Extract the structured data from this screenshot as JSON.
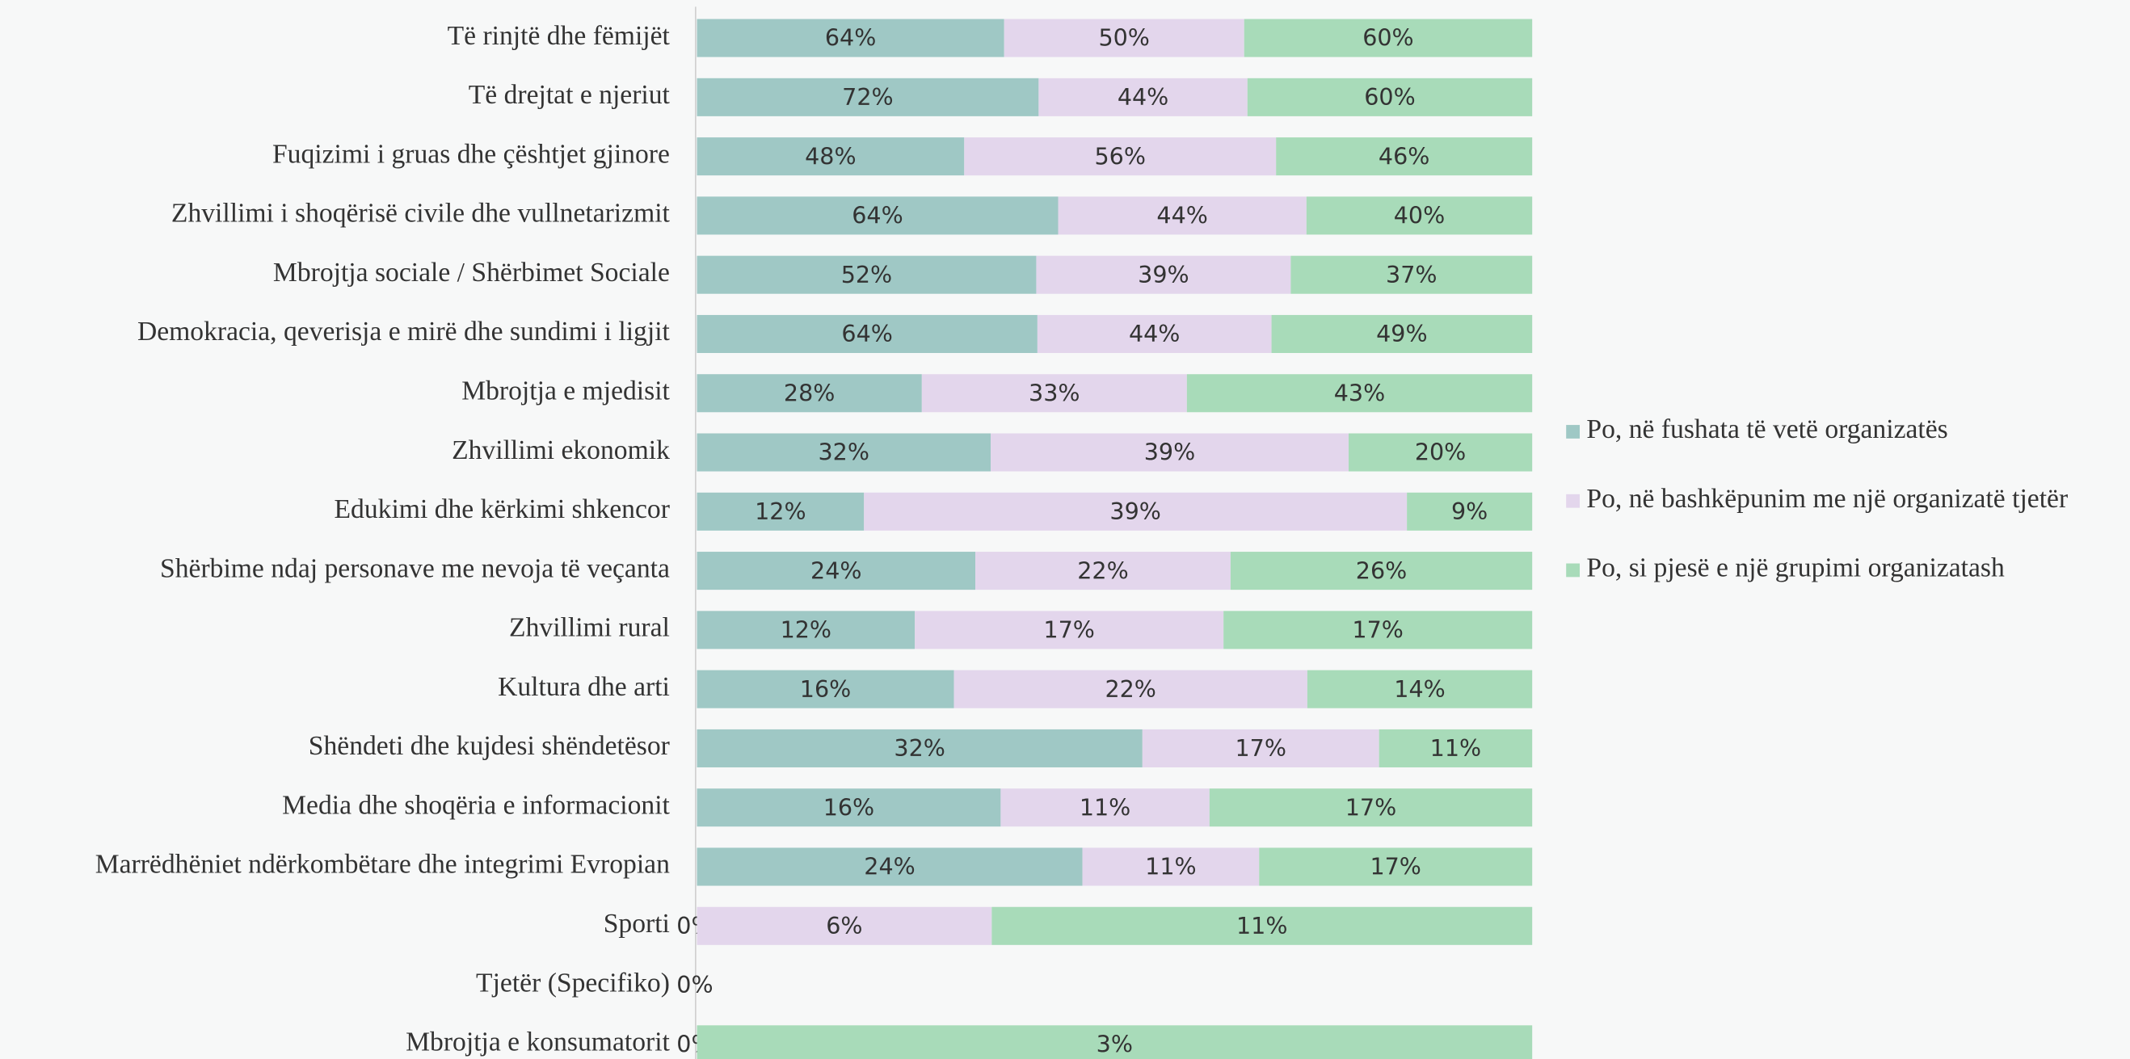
{
  "chart_data": {
    "type": "bar",
    "orientation": "horizontal",
    "stack": "percent",
    "categories": [
      "Të rinjtë dhe fëmijët",
      "Të drejtat e njeriut",
      "Fuqizimi i gruas dhe çështjet gjinore",
      "Zhvillimi i shoqërisë civile dhe vullnetarizmit",
      "Mbrojtja sociale / Shërbimet Sociale",
      "Demokracia, qeverisja e mirë dhe sundimi i ligjit",
      "Mbrojtja e mjedisit",
      "Zhvillimi ekonomik",
      "Edukimi dhe kërkimi shkencor",
      "Shërbime ndaj personave me nevoja të veçanta",
      "Zhvillimi rural",
      "Kultura dhe arti",
      "Shëndeti dhe kujdesi shëndetësor",
      "Media dhe shoqëria e informacionit",
      "Marrëdhëniet ndërkombëtare dhe integrimi Evropian",
      "Sporti",
      "Tjetër (Specifiko)",
      "Mbrojtja e konsumatorit"
    ],
    "series": [
      {
        "name": "Po, në fushata të vetë organizatës",
        "color": "#9fc8c5",
        "values": [
          64,
          72,
          48,
          64,
          52,
          64,
          28,
          32,
          12,
          24,
          12,
          16,
          32,
          16,
          24,
          0,
          0,
          0
        ],
        "value_labels": [
          "64%",
          "72%",
          "48%",
          "64%",
          "52%",
          "64%",
          "28%",
          "32%",
          "12%",
          "24%",
          "12%",
          "16%",
          "32%",
          "16%",
          "24%",
          "0%",
          "0%",
          "0%"
        ]
      },
      {
        "name": "Po, në bashkëpunim me një organizatë tjetër",
        "color": "#e3d6ec",
        "values": [
          50,
          44,
          56,
          44,
          39,
          44,
          33,
          39,
          39,
          22,
          17,
          22,
          17,
          11,
          11,
          6,
          null,
          null
        ],
        "value_labels": [
          "50%",
          "44%",
          "56%",
          "44%",
          "39%",
          "44%",
          "33%",
          "39%",
          "39%",
          "22%",
          "17%",
          "22%",
          "17%",
          "11%",
          "11%",
          "6%",
          null,
          null
        ]
      },
      {
        "name": "Po, si pjesë e një grupimi organizatash",
        "color": "#a8dbb9",
        "values": [
          60,
          60,
          46,
          40,
          37,
          49,
          43,
          20,
          9,
          26,
          17,
          14,
          11,
          17,
          17,
          11,
          null,
          3
        ],
        "value_labels": [
          "60%",
          "60%",
          "46%",
          "40%",
          "37%",
          "49%",
          "43%",
          "20%",
          "9%",
          "26%",
          "17%",
          "14%",
          "11%",
          "17%",
          "17%",
          "11%",
          null,
          "3%"
        ]
      }
    ],
    "legend": "right"
  }
}
